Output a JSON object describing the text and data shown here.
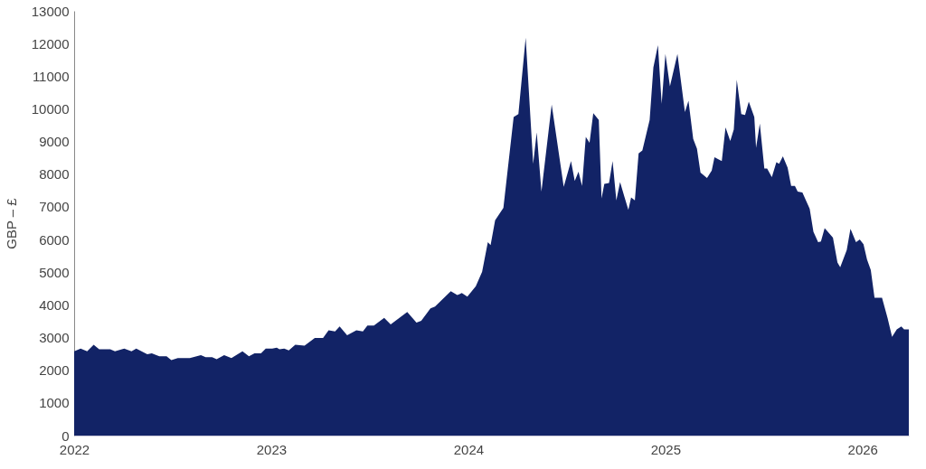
{
  "chart_data": {
    "type": "area",
    "ylabel": "GBP – £",
    "x": [
      2022.0,
      2022.033,
      2022.066,
      2022.099,
      2022.127,
      2022.183,
      2022.207,
      2022.254,
      2022.291,
      2022.315,
      2022.371,
      2022.394,
      2022.432,
      2022.469,
      2022.493,
      2022.526,
      2022.587,
      2022.643,
      2022.667,
      2022.7,
      2022.723,
      2022.761,
      2022.798,
      2022.854,
      2022.887,
      2022.915,
      2022.948,
      2022.972,
      2023.005,
      2023.028,
      2023.042,
      2023.066,
      2023.089,
      2023.122,
      2023.169,
      2023.221,
      2023.263,
      2023.291,
      2023.324,
      2023.347,
      2023.385,
      2023.432,
      2023.465,
      2023.488,
      2023.521,
      2023.573,
      2023.606,
      2023.69,
      2023.737,
      2023.761,
      2023.808,
      2023.831,
      2023.911,
      2023.944,
      2023.967,
      2023.995,
      2024.038,
      2024.07,
      2024.099,
      2024.113,
      2024.136,
      2024.178,
      2024.23,
      2024.254,
      2024.291,
      2024.329,
      2024.347,
      2024.371,
      2024.423,
      2024.484,
      2024.521,
      2024.54,
      2024.559,
      2024.577,
      2024.596,
      2024.615,
      2024.634,
      2024.662,
      2024.676,
      2024.69,
      2024.714,
      2024.732,
      2024.751,
      2024.77,
      2024.793,
      2024.812,
      2024.826,
      2024.845,
      2024.864,
      2024.883,
      2024.92,
      2024.939,
      2024.962,
      2024.981,
      2025.0,
      2025.023,
      2025.061,
      2025.099,
      2025.117,
      2025.141,
      2025.16,
      2025.178,
      2025.211,
      2025.235,
      2025.249,
      2025.286,
      2025.305,
      2025.329,
      2025.347,
      2025.362,
      2025.385,
      2025.404,
      2025.423,
      2025.451,
      2025.46,
      2025.479,
      2025.502,
      2025.516,
      2025.54,
      2025.563,
      2025.577,
      2025.596,
      2025.62,
      2025.638,
      2025.657,
      2025.671,
      2025.695,
      2025.732,
      2025.751,
      2025.775,
      2025.789,
      2025.808,
      2025.85,
      2025.873,
      2025.887,
      2025.92,
      2025.939,
      2025.967,
      2025.986,
      2026.005,
      2026.023,
      2026.042,
      2026.061,
      2026.099,
      2026.127,
      2026.15,
      2026.174,
      2026.197,
      2026.211,
      2026.235
    ],
    "series": [
      {
        "color": "#122366",
        "values": [
          2580,
          2660,
          2580,
          2780,
          2640,
          2640,
          2580,
          2660,
          2580,
          2660,
          2490,
          2520,
          2430,
          2430,
          2310,
          2370,
          2370,
          2460,
          2400,
          2400,
          2340,
          2460,
          2370,
          2580,
          2430,
          2520,
          2520,
          2660,
          2660,
          2690,
          2640,
          2660,
          2610,
          2780,
          2750,
          2990,
          2990,
          3220,
          3190,
          3340,
          3070,
          3220,
          3190,
          3370,
          3370,
          3600,
          3400,
          3780,
          3460,
          3510,
          3890,
          3950,
          4420,
          4300,
          4360,
          4250,
          4570,
          5010,
          5920,
          5830,
          6590,
          6970,
          9750,
          9840,
          12180,
          8320,
          9280,
          7470,
          10130,
          7610,
          8400,
          7790,
          8080,
          7640,
          9140,
          8960,
          9870,
          9660,
          7260,
          7700,
          7730,
          8400,
          7200,
          7760,
          7290,
          6910,
          7290,
          7200,
          8640,
          8730,
          9660,
          11270,
          11950,
          10160,
          11680,
          10690,
          11680,
          9900,
          10250,
          9080,
          8780,
          8050,
          7880,
          8110,
          8520,
          8400,
          9430,
          9020,
          9370,
          10890,
          9840,
          9810,
          10220,
          9750,
          8810,
          9550,
          8170,
          8170,
          7910,
          8370,
          8320,
          8550,
          8200,
          7640,
          7640,
          7470,
          7440,
          6940,
          6240,
          5920,
          5940,
          6350,
          6060,
          5300,
          5150,
          5680,
          6330,
          5920,
          6000,
          5860,
          5390,
          5070,
          4220,
          4220,
          3600,
          3020,
          3250,
          3340,
          3250,
          3250
        ]
      }
    ],
    "xlim": [
      2022,
      2026.235
    ],
    "xticks": [
      2022,
      2023,
      2024,
      2025,
      2026
    ],
    "ylim": [
      0,
      13000
    ],
    "yticks": [
      0,
      1000,
      2000,
      3000,
      4000,
      5000,
      6000,
      7000,
      8000,
      9000,
      10000,
      11000,
      12000,
      13000
    ],
    "grid": false
  }
}
